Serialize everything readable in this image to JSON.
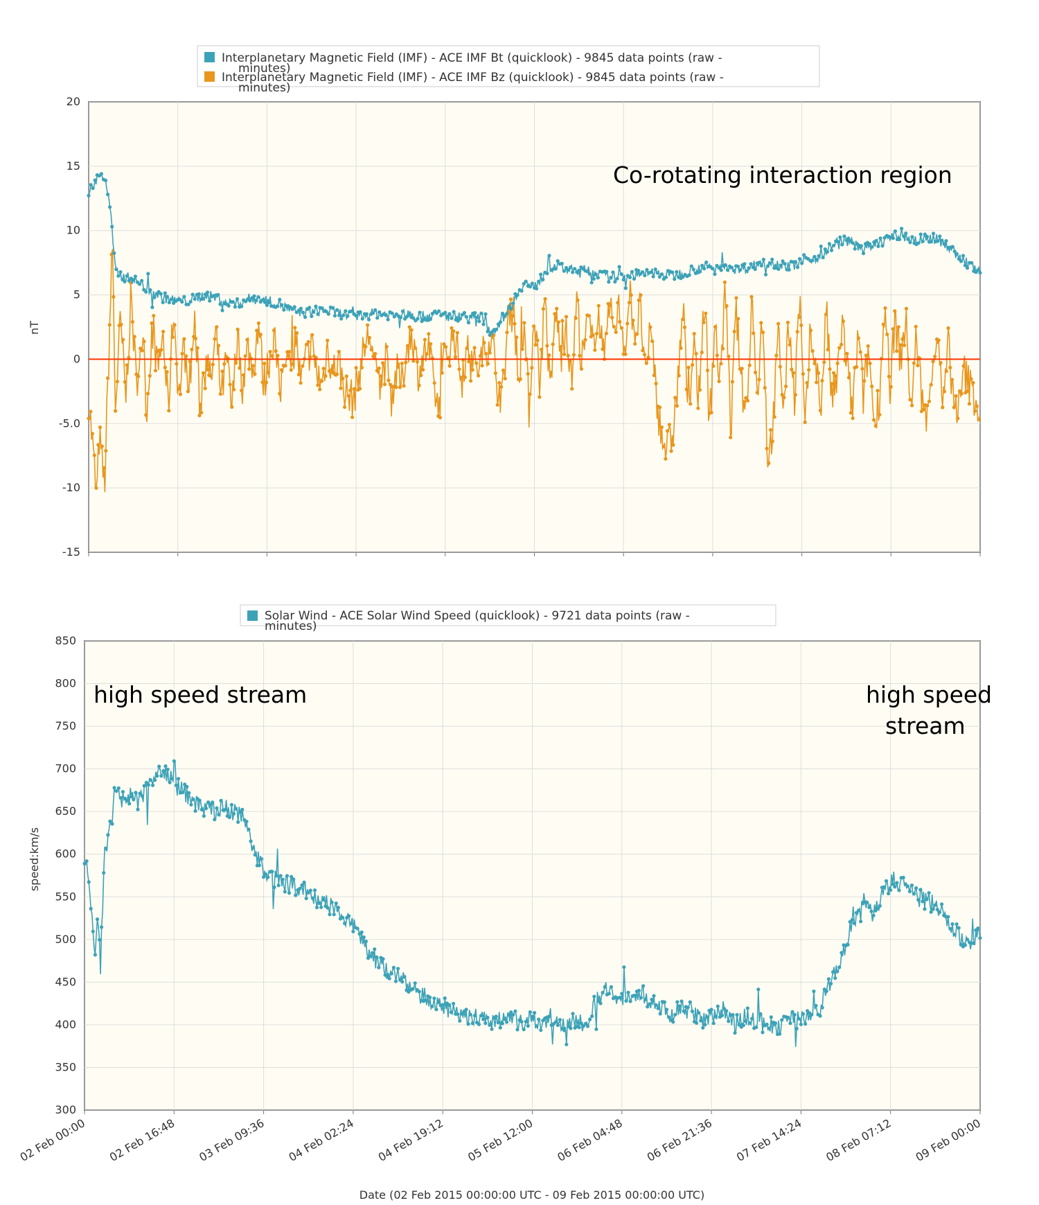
{
  "chart_data": [
    {
      "type": "line",
      "ylabel": "nT",
      "ylim": [
        -15,
        20
      ],
      "yticks": [
        "20",
        "15",
        "10",
        "5",
        "0",
        "-5.0",
        "-10",
        "-15"
      ],
      "ytick_values": [
        20,
        15,
        10,
        5,
        0,
        -5,
        -10,
        -15
      ],
      "xlim": [
        "02 Feb 2015 00:00",
        "09 Feb 2015 00:00"
      ],
      "grid": true,
      "legend_position": "top",
      "legend": [
        {
          "name": "Interplanetary Magnetic Field (IMF) - ACE IMF Bt (quicklook) - 9845 data points (raw - minutes)",
          "color": "#3da2b8"
        },
        {
          "name": "Interplanetary Magnetic Field (IMF) - ACE IMF Bz (quicklook) - 9845 data points (raw - minutes)",
          "color": "#e8961d"
        }
      ],
      "reference_line": {
        "y": 0,
        "color": "#ff3300"
      },
      "annotation": "Co-rotating interaction region",
      "series": [
        {
          "name": "Interplanetary Magnetic Field (IMF) - ACE IMF Bt (quicklook) - 9845 data points (raw - minutes)",
          "color": "#3da2b8",
          "x_hours": [
            0,
            1,
            2,
            3,
            3.5,
            4,
            5,
            6,
            8,
            10,
            12,
            14,
            16,
            18,
            20,
            22,
            24,
            26,
            28,
            30,
            32,
            34,
            36,
            38,
            40,
            42,
            44,
            46,
            48,
            50,
            52,
            54,
            56,
            58,
            60,
            62,
            64,
            66,
            68,
            70,
            72,
            74,
            76,
            78,
            80,
            82,
            84,
            86,
            88,
            90,
            92,
            94,
            96,
            98,
            100,
            102,
            104,
            106,
            108,
            110,
            112,
            114,
            116,
            118,
            120,
            122,
            124,
            126,
            128,
            130,
            132,
            134,
            136,
            138,
            140,
            142,
            144,
            146,
            148,
            150,
            152,
            154,
            156,
            158,
            160,
            162,
            164,
            166,
            168
          ],
          "values": [
            13,
            13.5,
            14.5,
            14,
            13,
            12,
            7,
            6.5,
            6.3,
            5.8,
            5.2,
            4.8,
            4.6,
            4.5,
            4.7,
            5,
            4.8,
            4.4,
            4.3,
            4.7,
            4.8,
            4.5,
            4.3,
            3.8,
            3.6,
            3.7,
            3.8,
            3.7,
            3.5,
            3.3,
            3.4,
            3.6,
            3.5,
            3.4,
            3.5,
            3.3,
            3.4,
            3.5,
            3.3,
            3.4,
            3.2,
            3.3,
            2.0,
            3.2,
            4.5,
            6.0,
            5.5,
            6.8,
            7.3,
            7.0,
            6.8,
            7.0,
            6.6,
            6.4,
            6.4,
            6.6,
            6.5,
            6.8,
            6.6,
            6.5,
            6.7,
            7.0,
            7.2,
            7.0,
            7.3,
            7.0,
            7.1,
            7.4,
            7.6,
            7.4,
            7.2,
            7.5,
            7.8,
            8.0,
            8.8,
            9.3,
            9.0,
            8.6,
            8.8,
            9.3,
            9.6,
            9.5,
            9.2,
            9.5,
            9.3,
            8.8,
            8.0,
            7.3,
            6.8
          ]
        },
        {
          "name": "Interplanetary Magnetic Field (IMF) - ACE IMF Bz (quicklook) - 9845 data points (raw - minutes)",
          "color": "#e8961d",
          "x_hours": [
            0,
            1,
            1.5,
            2,
            3,
            4,
            4.5,
            5,
            6,
            7,
            8,
            9,
            10,
            11,
            12,
            13,
            14,
            15,
            16,
            17,
            18,
            19,
            20,
            21,
            22,
            23,
            24,
            25,
            26,
            27,
            28,
            29,
            30,
            31,
            32,
            33,
            34,
            35,
            36,
            37,
            38,
            39,
            40,
            41,
            42,
            43,
            44,
            45,
            46,
            47,
            48,
            49,
            50,
            51,
            52,
            53,
            54,
            55,
            56,
            57,
            58,
            59,
            60,
            61,
            62,
            63,
            64,
            65,
            66,
            67,
            68,
            69,
            70,
            71,
            72,
            73,
            74,
            75,
            76,
            77,
            78,
            79,
            80,
            81,
            82,
            83,
            84,
            85,
            86,
            87,
            88,
            89,
            90,
            91,
            92,
            93,
            94,
            95,
            96,
            97,
            98,
            99,
            100,
            101,
            102,
            103,
            104,
            105,
            106,
            107,
            108,
            109,
            110,
            111,
            112,
            113,
            114,
            115,
            116,
            117,
            118,
            119,
            120,
            121,
            122,
            123,
            124,
            125,
            126,
            127,
            128,
            129,
            130,
            131,
            132,
            133,
            134,
            135,
            136,
            137,
            138,
            139,
            140,
            141,
            142,
            143,
            144,
            145,
            146,
            147,
            148,
            149,
            150,
            151,
            152,
            153,
            154,
            155,
            156,
            157,
            158,
            159,
            160,
            161,
            162,
            163,
            164,
            165,
            166,
            167,
            168
          ],
          "values": [
            -3,
            -8,
            -11,
            -6,
            -10,
            3,
            9,
            -4,
            3,
            -3,
            5,
            -2,
            2,
            -4,
            3,
            -1,
            2,
            -4,
            4,
            -3,
            1,
            -2,
            3,
            -4,
            1,
            -2,
            2,
            -3,
            0,
            -4,
            2,
            -2,
            1,
            -1,
            3,
            -2,
            0,
            2,
            -3,
            1,
            -1,
            2,
            -2,
            0,
            1,
            -1,
            -2,
            1,
            -1,
            0,
            -2,
            -3,
            -3,
            -1,
            1,
            2,
            -1,
            -2,
            0,
            -3,
            -1,
            -2,
            1,
            2,
            -1,
            0,
            1,
            -2,
            -4,
            0,
            1,
            2,
            -1,
            0,
            1,
            -1,
            0,
            1,
            2,
            -2,
            -3,
            3,
            5,
            -2,
            3,
            -4,
            4,
            -2,
            5,
            -3,
            4,
            0,
            3,
            -2,
            5,
            -1,
            3,
            1,
            4,
            0,
            5,
            2,
            4,
            1,
            5,
            2,
            4,
            -2,
            3,
            -3,
            -6,
            -7,
            -6,
            -2,
            4,
            -4,
            1,
            -3,
            5,
            -5,
            3,
            -2,
            6,
            -6,
            4,
            -2,
            -4,
            5,
            -3,
            4,
            -8,
            -5,
            2,
            -4,
            3,
            -3,
            5,
            -6,
            2,
            0,
            -4,
            4,
            -3,
            -2,
            3,
            -1,
            -4,
            2,
            -3,
            1,
            -5,
            -3,
            4,
            -2,
            3,
            0,
            3,
            -4,
            2,
            -3,
            -5,
            0,
            2,
            -4,
            1,
            -3,
            -4,
            -1,
            -2,
            -3,
            -4
          ]
        }
      ]
    },
    {
      "type": "line",
      "ylabel": "speed:km/s",
      "ylim": [
        300,
        850
      ],
      "yticks": [
        "850",
        "800",
        "750",
        "700",
        "650",
        "600",
        "550",
        "500",
        "450",
        "400",
        "350",
        "300"
      ],
      "ytick_values": [
        850,
        800,
        750,
        700,
        650,
        600,
        550,
        500,
        450,
        400,
        350,
        300
      ],
      "xlim": [
        "02 Feb 2015 00:00",
        "09 Feb 2015 00:00"
      ],
      "xticks": [
        "02 Feb 00:00",
        "02 Feb 16:48",
        "03 Feb 09:36",
        "04 Feb 02:24",
        "04 Feb 19:12",
        "05 Feb 12:00",
        "06 Feb 04:48",
        "06 Feb 21:36",
        "07 Feb 14:24",
        "08 Feb 07:12",
        "09 Feb 00:00"
      ],
      "xlabel": "Date (02 Feb 2015 00:00:00 UTC - 09 Feb 2015 00:00:00 UTC)",
      "grid": true,
      "legend_position": "top",
      "legend": [
        {
          "name": "Solar Wind - ACE Solar Wind Speed (quicklook) - 9721 data points (raw - minutes)",
          "color": "#3da2b8"
        }
      ],
      "annotations": [
        "high speed stream",
        "high speed",
        "stream"
      ],
      "series": [
        {
          "name": "Solar Wind - ACE Solar Wind Speed (quicklook) - 9721 data points (raw - minutes)",
          "color": "#3da2b8",
          "x_hours": [
            0,
            1,
            1.5,
            2,
            2.5,
            3,
            3.5,
            4,
            5,
            6,
            7,
            8,
            10,
            12,
            14,
            16,
            18,
            20,
            22,
            24,
            26,
            28,
            30,
            32,
            34,
            36,
            38,
            40,
            42,
            44,
            46,
            48,
            50,
            52,
            54,
            56,
            58,
            60,
            62,
            64,
            66,
            68,
            70,
            72,
            74,
            76,
            78,
            80,
            82,
            84,
            86,
            88,
            90,
            92,
            94,
            96,
            98,
            100,
            102,
            104,
            106,
            108,
            110,
            112,
            114,
            116,
            118,
            120,
            122,
            124,
            126,
            128,
            130,
            132,
            134,
            136,
            138,
            140,
            142,
            144,
            146,
            148,
            150,
            152,
            154,
            156,
            158,
            160,
            162,
            164,
            166,
            168
          ],
          "values": [
            600,
            560,
            520,
            480,
            540,
            470,
            560,
            600,
            640,
            670,
            665,
            670,
            660,
            680,
            700,
            690,
            675,
            665,
            655,
            650,
            655,
            650,
            640,
            600,
            580,
            570,
            565,
            560,
            555,
            545,
            540,
            530,
            520,
            500,
            480,
            470,
            460,
            450,
            440,
            430,
            425,
            420,
            415,
            410,
            410,
            405,
            405,
            410,
            400,
            405,
            400,
            410,
            400,
            405,
            400,
            430,
            440,
            435,
            430,
            440,
            430,
            420,
            410,
            420,
            415,
            405,
            410,
            420,
            400,
            410,
            405,
            400,
            395,
            410,
            405,
            415,
            420,
            450,
            480,
            520,
            540,
            530,
            560,
            570,
            560,
            550,
            545,
            540,
            520,
            505,
            490,
            510
          ]
        }
      ]
    }
  ]
}
